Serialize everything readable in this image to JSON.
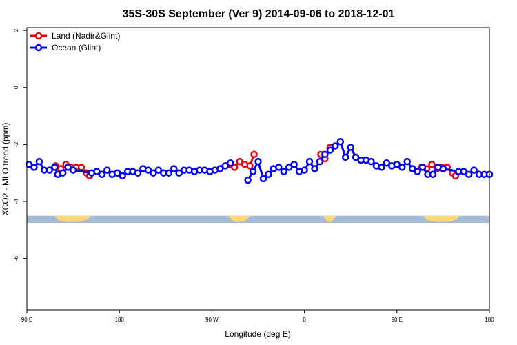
{
  "chart_data": {
    "type": "line",
    "title": "35S-30S September (Ver 9)   2014-09-06 to 2018-12-01",
    "xlabel": "Longitude (deg E)",
    "ylabel": "XCO2 - MLO trend (ppm)",
    "x_ticks": [
      {
        "value": 90,
        "label": "90 E"
      },
      {
        "value": 180,
        "label": "180"
      },
      {
        "value": 270,
        "label": "90 W"
      },
      {
        "value": 360,
        "label": "0"
      },
      {
        "value": 450,
        "label": "90 E"
      },
      {
        "value": 540,
        "label": "180"
      }
    ],
    "y_ticks": [
      {
        "value": 2,
        "label": "2"
      },
      {
        "value": 0,
        "label": "0"
      },
      {
        "value": -2,
        "label": "-2"
      },
      {
        "value": -4,
        "label": "-4"
      },
      {
        "value": -6,
        "label": "-6"
      }
    ],
    "xlim": [
      90,
      540
    ],
    "ylim": [
      -7.8,
      2.1
    ],
    "grid": false,
    "legend_position": "top-left",
    "series": [
      {
        "name": "Land (Nadir&Glint)",
        "color": "#e8000b",
        "segments": [
          [
            [
              118,
              -2.75
            ],
            [
              123,
              -2.85
            ],
            [
              128,
              -2.7
            ],
            [
              133,
              -2.8
            ],
            [
              138,
              -2.8
            ],
            [
              143,
              -2.8
            ],
            [
              148,
              -3.0
            ],
            [
              151,
              -3.1
            ]
          ],
          [
            [
              287,
              -2.7
            ],
            [
              292,
              -2.8
            ],
            [
              297,
              -2.6
            ],
            [
              302,
              -2.7
            ],
            [
              307,
              -2.75
            ],
            [
              311,
              -2.35
            ]
          ],
          [
            [
              376,
              -2.35
            ],
            [
              380,
              -2.5
            ],
            [
              385,
              -2.1
            ]
          ],
          [
            [
              474,
              -2.8
            ],
            [
              479,
              -2.85
            ],
            [
              484,
              -2.7
            ],
            [
              489,
              -2.85
            ],
            [
              494,
              -2.8
            ],
            [
              499,
              -2.8
            ],
            [
              504,
              -3.0
            ],
            [
              507,
              -3.1
            ]
          ]
        ]
      },
      {
        "name": "Ocean (Glint)",
        "color": "#0000ee",
        "segments": [
          [
            [
              92,
              -2.7
            ],
            [
              97,
              -2.8
            ],
            [
              102,
              -2.6
            ],
            [
              107,
              -2.9
            ],
            [
              112,
              -2.9
            ],
            [
              117,
              -2.8
            ],
            [
              120,
              -3.05
            ],
            [
              125,
              -3.0
            ],
            [
              130,
              -2.8
            ],
            [
              135,
              -2.9
            ],
            [
              153,
              -3.0
            ],
            [
              158,
              -2.95
            ],
            [
              163,
              -3.05
            ],
            [
              168,
              -2.9
            ],
            [
              173,
              -3.05
            ],
            [
              178,
              -3.0
            ],
            [
              183,
              -3.1
            ],
            [
              188,
              -2.95
            ],
            [
              193,
              -2.95
            ],
            [
              198,
              -3.0
            ],
            [
              203,
              -2.85
            ],
            [
              208,
              -2.9
            ],
            [
              213,
              -3.0
            ],
            [
              218,
              -2.9
            ],
            [
              223,
              -3.0
            ],
            [
              228,
              -3.0
            ],
            [
              233,
              -2.85
            ],
            [
              238,
              -3.0
            ],
            [
              243,
              -2.9
            ],
            [
              248,
              -2.9
            ],
            [
              253,
              -2.95
            ],
            [
              258,
              -2.9
            ],
            [
              263,
              -2.9
            ],
            [
              268,
              -2.95
            ],
            [
              273,
              -2.9
            ],
            [
              278,
              -2.85
            ],
            [
              283,
              -2.75
            ],
            [
              288,
              -2.65
            ]
          ],
          [
            [
              305,
              -3.25
            ],
            [
              310,
              -2.95
            ],
            [
              315,
              -2.6
            ],
            [
              320,
              -3.2
            ],
            [
              325,
              -3.05
            ],
            [
              330,
              -2.85
            ],
            [
              335,
              -2.8
            ],
            [
              340,
              -2.95
            ],
            [
              345,
              -2.8
            ],
            [
              350,
              -2.7
            ],
            [
              355,
              -2.95
            ],
            [
              360,
              -2.9
            ],
            [
              365,
              -2.6
            ],
            [
              370,
              -2.85
            ],
            [
              375,
              -2.6
            ],
            [
              380,
              -2.35
            ],
            [
              385,
              -2.2
            ],
            [
              390,
              -2.05
            ],
            [
              395,
              -1.9
            ],
            [
              400,
              -2.45
            ],
            [
              405,
              -2.1
            ],
            [
              410,
              -2.45
            ],
            [
              415,
              -2.55
            ],
            [
              420,
              -2.55
            ],
            [
              425,
              -2.6
            ],
            [
              430,
              -2.75
            ],
            [
              435,
              -2.8
            ],
            [
              440,
              -2.65
            ],
            [
              445,
              -2.75
            ],
            [
              450,
              -2.7
            ],
            [
              455,
              -2.8
            ],
            [
              460,
              -2.6
            ],
            [
              465,
              -2.85
            ],
            [
              470,
              -2.95
            ],
            [
              475,
              -2.8
            ],
            [
              480,
              -3.05
            ],
            [
              485,
              -3.05
            ],
            [
              490,
              -2.8
            ],
            [
              495,
              -2.85
            ],
            [
              510,
              -2.95
            ],
            [
              515,
              -2.95
            ],
            [
              520,
              -3.05
            ],
            [
              525,
              -2.9
            ],
            [
              530,
              -3.05
            ],
            [
              535,
              -3.05
            ],
            [
              540,
              -3.05
            ]
          ]
        ]
      }
    ],
    "land_strip": {
      "y_top": -4.5,
      "y_bottom": -4.75,
      "ocean_color": "#a5bcd8",
      "land_color": "#ffd876",
      "land_ranges": [
        [
          117,
          152
        ],
        [
          286,
          307
        ],
        [
          378,
          391
        ],
        [
          476,
          511
        ]
      ]
    }
  }
}
